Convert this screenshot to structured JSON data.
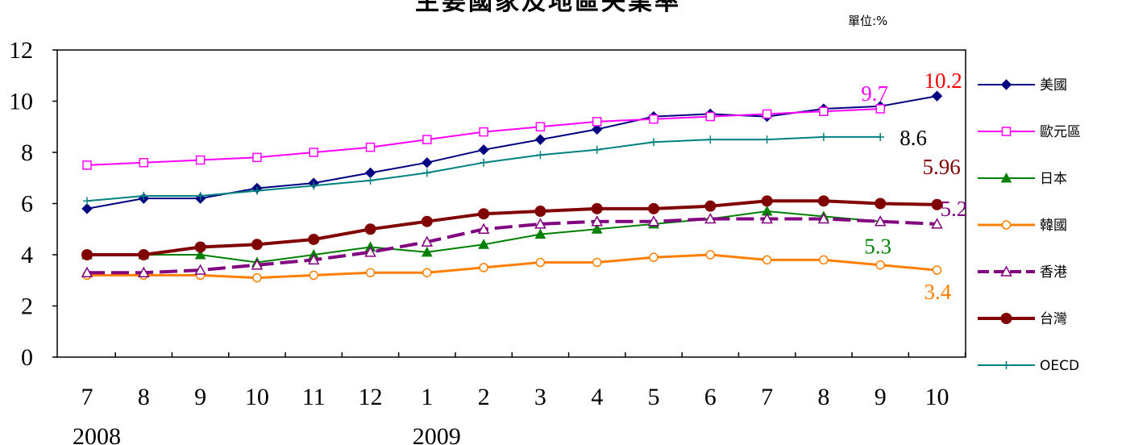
{
  "chart_data": {
    "type": "line",
    "title": "主要國家及地區失業率",
    "unit_label": "單位:%",
    "x_labels": [
      "7",
      "8",
      "9",
      "10",
      "11",
      "12",
      "1",
      "2",
      "3",
      "4",
      "5",
      "6",
      "7",
      "8",
      "9",
      "10"
    ],
    "year_labels": [
      {
        "text": "2008",
        "at_index": 0
      },
      {
        "text": "2009",
        "at_index": 6
      }
    ],
    "ylim": [
      0,
      12
    ],
    "y_ticks": [
      "0",
      "2",
      "4",
      "6",
      "8",
      "10",
      "12"
    ],
    "grid": false,
    "legend_position": "right",
    "series": [
      {
        "name": "美國",
        "color": "#000080",
        "marker": "diamond-filled",
        "dash": "solid",
        "width": 2,
        "values": [
          5.8,
          6.2,
          6.2,
          6.6,
          6.8,
          7.2,
          7.6,
          8.1,
          8.5,
          8.9,
          9.4,
          9.5,
          9.4,
          9.7,
          9.8,
          10.2
        ]
      },
      {
        "name": "歐元區",
        "color": "#ff00ff",
        "marker": "square-open",
        "dash": "solid",
        "width": 2,
        "values": [
          7.5,
          7.6,
          7.7,
          7.8,
          8.0,
          8.2,
          8.5,
          8.8,
          9.0,
          9.2,
          9.3,
          9.4,
          9.5,
          9.6,
          9.7,
          null
        ]
      },
      {
        "name": "日本",
        "color": "#008000",
        "marker": "triangle-filled",
        "dash": "solid",
        "width": 2,
        "values": [
          4.0,
          4.0,
          4.0,
          3.7,
          4.0,
          4.3,
          4.1,
          4.4,
          4.8,
          5.0,
          5.2,
          5.4,
          5.7,
          5.5,
          5.3,
          null
        ]
      },
      {
        "name": "韓國",
        "color": "#ff7f00",
        "marker": "circle-open",
        "dash": "solid",
        "width": 3,
        "values": [
          3.2,
          3.2,
          3.2,
          3.1,
          3.2,
          3.3,
          3.3,
          3.5,
          3.7,
          3.7,
          3.9,
          4.0,
          3.8,
          3.8,
          3.6,
          3.4
        ]
      },
      {
        "name": "香港",
        "color": "#800080",
        "marker": "triangle-open",
        "dash": "dashed",
        "width": 4,
        "values": [
          3.3,
          3.3,
          3.4,
          3.6,
          3.8,
          4.1,
          4.5,
          5.0,
          5.2,
          5.3,
          5.3,
          5.4,
          5.4,
          5.4,
          5.3,
          5.2
        ]
      },
      {
        "name": "台灣",
        "color": "#800000",
        "marker": "circle-filled",
        "dash": "solid",
        "width": 4,
        "values": [
          4.0,
          4.0,
          4.3,
          4.4,
          4.6,
          5.0,
          5.3,
          5.6,
          5.7,
          5.8,
          5.8,
          5.9,
          6.1,
          6.1,
          6.0,
          5.96
        ]
      },
      {
        "name": "OECD",
        "color": "#008080",
        "marker": "plus",
        "dash": "solid",
        "width": 2,
        "values": [
          6.1,
          6.3,
          6.3,
          6.5,
          6.7,
          6.9,
          7.2,
          7.6,
          7.9,
          8.1,
          8.4,
          8.5,
          8.5,
          8.6,
          8.6,
          null
        ]
      }
    ],
    "annotations": [
      {
        "text": "10.2",
        "series": "美國",
        "index": 15,
        "color": "#ff0000"
      },
      {
        "text": "9.7",
        "series": "歐元區",
        "index": 14,
        "color": "#ff00ff"
      },
      {
        "text": "8.6",
        "series": "OECD",
        "index": 14,
        "color": "#000000"
      },
      {
        "text": "5.96",
        "series": "台灣",
        "index": 15,
        "color": "#800000"
      },
      {
        "text": "5.2",
        "series": "香港",
        "index": 15,
        "color": "#800080"
      },
      {
        "text": "5.3",
        "series": "日本",
        "index": 14,
        "color": "#008000"
      },
      {
        "text": "3.4",
        "series": "韓國",
        "index": 15,
        "color": "#ff7f00"
      }
    ]
  }
}
